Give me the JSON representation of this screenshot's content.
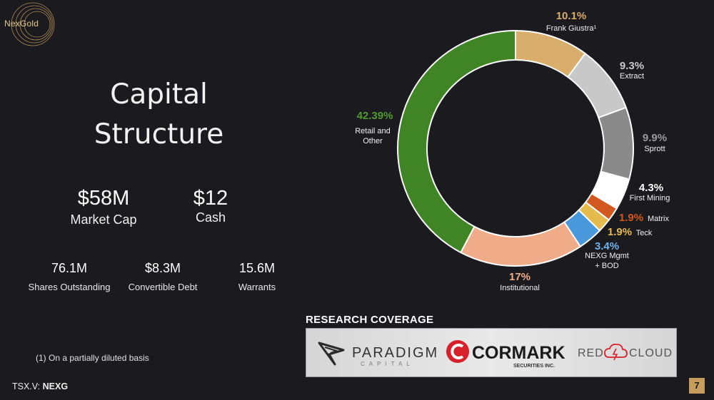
{
  "logo": {
    "text": "NexGold"
  },
  "title": {
    "line1": "Capital",
    "line2": "Structure"
  },
  "market_cap": {
    "value": "$58M",
    "label": "Market Cap"
  },
  "cash": {
    "value": "$12",
    "label": "Cash"
  },
  "stats": [
    {
      "value": "76.1M",
      "label": "Shares Outstanding"
    },
    {
      "value": "$8.3M",
      "label": "Convertible Debt"
    },
    {
      "value": "15.6M",
      "label": "Warrants"
    }
  ],
  "footnote": "(1) On a partially diluted basis",
  "ticker": {
    "prefix": "TSX.V:",
    "symbol": "NEXG"
  },
  "research": {
    "title": "RESEARCH COVERAGE",
    "firms": [
      {
        "name": "PARADIGM",
        "sub": "CAPITAL"
      },
      {
        "name": "CORMARK",
        "sub": "SECURITIES INC."
      },
      {
        "name": "RED",
        "name2": "CLOUD"
      }
    ]
  },
  "page_number": "7",
  "chart_data": {
    "type": "pie",
    "variant": "donut",
    "slices": [
      {
        "label": "Frank Giustra¹",
        "pct_text": "10.1%",
        "value": 10.1,
        "color": "#d9ad6c",
        "pct_color": "#d9ad6c"
      },
      {
        "label": "Extract",
        "pct_text": "9.3%",
        "value": 9.3,
        "color": "#c8c8c8",
        "pct_color": "#c8c8c8"
      },
      {
        "label": "Sprott",
        "pct_text": "9.9%",
        "value": 9.9,
        "color": "#8a8a8a",
        "pct_color": "#9a9a9a"
      },
      {
        "label": "First Mining",
        "pct_text": "4.3%",
        "value": 4.3,
        "color": "#ffffff",
        "pct_color": "#ffffff"
      },
      {
        "label": "Matrix",
        "pct_text": "1.9%",
        "value": 1.9,
        "color": "#d2581f",
        "pct_color": "#d2581f"
      },
      {
        "label": "Teck",
        "pct_text": "1.9%",
        "value": 1.9,
        "color": "#e6bb4e",
        "pct_color": "#e6bb4e"
      },
      {
        "label": "NEXG Mgmt + BOD",
        "label_lines": [
          "NEXG Mgmt",
          "+ BOD"
        ],
        "pct_text": "3.4%",
        "value": 3.4,
        "color": "#4a98dc",
        "pct_color": "#6fb3ea"
      },
      {
        "label": "Institutional",
        "pct_text": "17%",
        "value": 17,
        "color": "#f0ab88",
        "pct_color": "#f0ab88"
      },
      {
        "label": "Retail and Other",
        "label_lines": [
          "Retail and",
          "Other"
        ],
        "pct_text": "42.39%",
        "value": 42.39,
        "color": "#3f8525",
        "pct_color": "#4f9b2f"
      }
    ]
  }
}
